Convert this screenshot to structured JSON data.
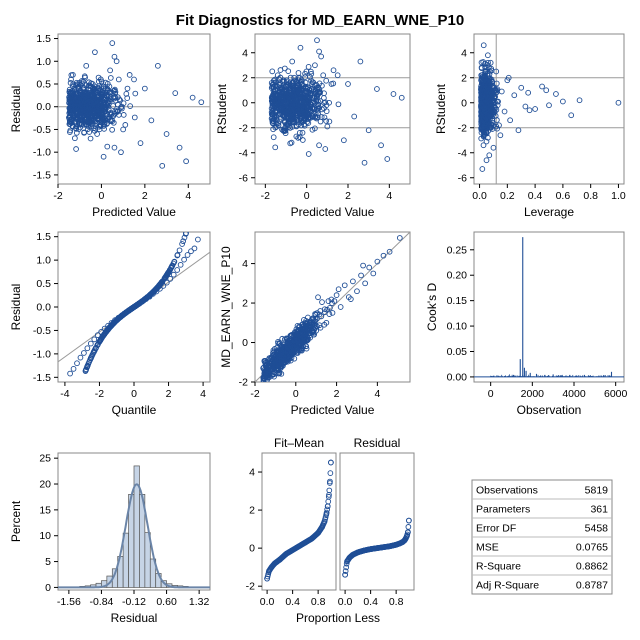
{
  "title": "Fit Diagnostics for MD_EARN_WNE_P10",
  "colors": {
    "points": "#1f4e96",
    "reference": "#9a9a9a",
    "frame": "#888888",
    "hist_fill": "#c6d4e6",
    "curve": "#6b85a8"
  },
  "chart_data": [
    {
      "id": "resid-vs-pred",
      "type": "scatter",
      "xlabel": "Predicted Value",
      "ylabel": "Residual",
      "xlim": [
        -2,
        5
      ],
      "ylim": [
        -1.7,
        1.6
      ],
      "xticks": [
        "-2",
        "0",
        "2",
        "4"
      ],
      "xtick_values": [
        -2,
        0,
        2,
        4
      ],
      "yticks": [
        "-1.5",
        "-1.0",
        "-0.5",
        "0.0",
        "0.5",
        "1.0",
        "1.5"
      ],
      "ytick_values": [
        -1.5,
        -1,
        -0.5,
        0,
        0.5,
        1,
        1.5
      ],
      "reference_y": [
        0
      ],
      "x": [
        -1.2,
        -1.0,
        -0.8,
        -0.6,
        -0.4,
        -0.2,
        0.0,
        0.2,
        0.4,
        0.6,
        0.8,
        1.0,
        1.2,
        -1.1,
        -0.7,
        -0.3,
        0.1,
        0.5,
        0.9,
        1.3,
        -0.9,
        -0.5,
        0.3,
        0.7,
        1.5,
        1.8,
        2.0,
        2.3,
        2.6,
        3.0,
        3.4,
        3.6,
        3.9,
        4.2,
        4.6,
        -1.4,
        -0.1,
        0.6,
        1.1,
        2.8
      ],
      "y": [
        0.1,
        -0.2,
        0.3,
        -0.4,
        0.5,
        -0.6,
        0.2,
        -0.3,
        0.8,
        -0.9,
        0.6,
        -0.5,
        0.4,
        -0.1,
        0.9,
        1.2,
        -1.1,
        1.4,
        -1.0,
        0.7,
        0.2,
        -0.7,
        0.0,
        1.0,
        0.6,
        -0.8,
        0.4,
        -0.3,
        0.9,
        -0.6,
        0.3,
        -0.9,
        -1.2,
        0.2,
        0.1,
        0.6,
        -0.2,
        1.1,
        -0.4,
        -1.3
      ]
    },
    {
      "id": "rstudent-vs-pred",
      "type": "scatter",
      "xlabel": "Predicted Value",
      "ylabel": "RStudent",
      "xlim": [
        -2.5,
        5
      ],
      "ylim": [
        -6.5,
        5.5
      ],
      "xticks": [
        "-2",
        "0",
        "2",
        "4"
      ],
      "xtick_values": [
        -2,
        0,
        2,
        4
      ],
      "yticks": [
        "-6",
        "-4",
        "-2",
        "0",
        "2",
        "4"
      ],
      "ytick_values": [
        -6,
        -4,
        -2,
        0,
        2,
        4
      ],
      "reference_y": [
        -2,
        2
      ],
      "x": [
        -1.2,
        -1.0,
        -0.8,
        -0.6,
        -0.4,
        -0.2,
        0.0,
        0.2,
        0.4,
        0.6,
        0.8,
        1.0,
        1.2,
        -1.1,
        -0.7,
        -0.3,
        0.1,
        0.5,
        0.9,
        1.3,
        -0.9,
        -0.5,
        0.3,
        0.7,
        1.5,
        1.8,
        2.0,
        2.3,
        2.6,
        3.0,
        3.4,
        3.6,
        3.9,
        4.2,
        4.6,
        -1.4,
        -0.1,
        0.6,
        1.1,
        2.8
      ],
      "y": [
        0.3,
        -0.8,
        1.1,
        -1.6,
        2.0,
        -2.4,
        0.8,
        -1.2,
        3.0,
        -3.4,
        2.2,
        -1.9,
        1.5,
        -0.4,
        3.3,
        4.4,
        -4.1,
        5.0,
        -3.7,
        2.6,
        0.7,
        -2.7,
        0.0,
        3.7,
        2.2,
        -3.0,
        1.5,
        -1.1,
        3.3,
        -2.2,
        1.1,
        -3.4,
        -4.5,
        0.7,
        0.4,
        2.2,
        -0.8,
        4.1,
        -1.5,
        -4.8
      ]
    },
    {
      "id": "rstudent-vs-leverage",
      "type": "scatter",
      "xlabel": "Leverage",
      "ylabel": "RStudent",
      "xlim": [
        -0.04,
        1.04
      ],
      "ylim": [
        -6.5,
        5.5
      ],
      "xticks": [
        "0.0",
        "0.2",
        "0.4",
        "0.6",
        "0.8",
        "1.0"
      ],
      "xtick_values": [
        0,
        0.2,
        0.4,
        0.6,
        0.8,
        1.0
      ],
      "yticks": [
        "-6",
        "-4",
        "-2",
        "0",
        "2",
        "4"
      ],
      "ytick_values": [
        -6,
        -4,
        -2,
        0,
        2,
        4
      ],
      "reference_y": [
        -2,
        2
      ],
      "reference_x": [
        0.12
      ],
      "x": [
        0.02,
        0.03,
        0.04,
        0.05,
        0.06,
        0.07,
        0.08,
        0.03,
        0.05,
        0.07,
        0.09,
        0.1,
        0.12,
        0.14,
        0.16,
        0.18,
        0.2,
        0.22,
        0.25,
        0.28,
        0.3,
        0.33,
        0.35,
        0.4,
        0.45,
        0.5,
        0.55,
        0.6,
        0.66,
        0.72,
        0.02,
        0.04,
        0.06,
        0.08,
        0.1,
        1.0,
        0.36,
        0.48,
        0.15,
        0.21
      ],
      "y": [
        0.5,
        -1.2,
        2.3,
        -3.1,
        3.8,
        -4.2,
        1.0,
        4.6,
        -4.6,
        -2.0,
        1.7,
        -0.9,
        2.5,
        -1.8,
        0.9,
        -0.7,
        1.8,
        -1.4,
        0.6,
        -2.2,
        1.2,
        -0.3,
        0.8,
        -0.5,
        1.3,
        -0.2,
        0.7,
        0.1,
        -1.0,
        0.2,
        -5.3,
        0.0,
        -2.8,
        3.2,
        -3.6,
        0.0,
        -0.6,
        1.0,
        -2.6,
        2.0
      ]
    },
    {
      "id": "qq-plot",
      "type": "scatter",
      "xlabel": "Quantile",
      "ylabel": "Residual",
      "xlim": [
        -4.4,
        4.4
      ],
      "ylim": [
        -1.6,
        1.6
      ],
      "xticks": [
        "-4",
        "-2",
        "0",
        "2",
        "4"
      ],
      "xtick_values": [
        -4,
        -2,
        0,
        2,
        4
      ],
      "yticks": [
        "-1.5",
        "-1.0",
        "-0.5",
        "0.0",
        "0.5",
        "1.0",
        "1.5"
      ],
      "ytick_values": [
        -1.5,
        -1,
        -0.5,
        0,
        0.5,
        1,
        1.5
      ],
      "reference_line": {
        "x": [
          -4.4,
          4.4
        ],
        "y": [
          -1.17,
          1.17
        ]
      },
      "x": [
        -3.7,
        -3.5,
        -3.3,
        -3.1,
        -2.9,
        -2.7,
        -2.5,
        -2.3,
        -2.1,
        -1.9,
        -1.7,
        -1.5,
        -1.3,
        -1.1,
        -0.9,
        -0.7,
        -0.5,
        -0.3,
        -0.1,
        0.1,
        0.3,
        0.5,
        0.7,
        0.9,
        1.1,
        1.3,
        1.5,
        1.7,
        1.9,
        2.1,
        2.3,
        2.5,
        2.7,
        2.9,
        3.1,
        3.3,
        3.5,
        3.7
      ],
      "y": [
        -1.42,
        -1.32,
        -1.2,
        -1.08,
        -0.98,
        -0.88,
        -0.78,
        -0.69,
        -0.6,
        -0.53,
        -0.46,
        -0.4,
        -0.34,
        -0.28,
        -0.23,
        -0.18,
        -0.13,
        -0.08,
        -0.03,
        0.02,
        0.07,
        0.12,
        0.17,
        0.22,
        0.28,
        0.33,
        0.39,
        0.45,
        0.52,
        0.6,
        0.69,
        0.79,
        0.9,
        1.01,
        1.11,
        1.19,
        1.25,
        1.44
      ]
    },
    {
      "id": "observed-vs-pred",
      "type": "scatter",
      "xlabel": "Predicted Value",
      "ylabel": "MD_EARN_WNE_P10",
      "xlim": [
        -2,
        5.6
      ],
      "ylim": [
        -2,
        5.6
      ],
      "xticks": [
        "-2",
        "0",
        "2",
        "4"
      ],
      "xtick_values": [
        -2,
        0,
        2,
        4
      ],
      "yticks": [
        "-2",
        "0",
        "2",
        "4"
      ],
      "ytick_values": [
        -2,
        0,
        2,
        4
      ],
      "reference_line": {
        "x": [
          -2,
          5.6
        ],
        "y": [
          -2,
          5.6
        ]
      },
      "x": [
        -1.6,
        -1.4,
        -1.2,
        -1.0,
        -0.8,
        -0.6,
        -0.4,
        -0.2,
        0.0,
        0.2,
        0.4,
        0.6,
        0.8,
        1.0,
        1.2,
        1.4,
        1.6,
        1.8,
        2.0,
        2.2,
        2.4,
        2.6,
        2.8,
        3.0,
        3.2,
        3.4,
        3.6,
        3.8,
        4.0,
        4.3,
        4.6,
        5.1,
        -1.1,
        -0.5,
        0.3,
        0.9,
        1.5,
        2.1,
        2.7,
        3.3
      ],
      "y": [
        -1.3,
        -1.5,
        -1.0,
        -1.2,
        -0.7,
        -0.9,
        -0.2,
        -0.5,
        0.3,
        -0.2,
        0.7,
        0.2,
        1.2,
        0.6,
        1.6,
        0.9,
        2.1,
        1.5,
        2.4,
        1.8,
        2.9,
        2.3,
        3.1,
        2.6,
        3.4,
        3.0,
        3.8,
        3.5,
        4.1,
        4.4,
        4.6,
        5.3,
        -0.4,
        -1.0,
        0.9,
        0.4,
        1.0,
        2.7,
        2.2,
        3.9
      ]
    },
    {
      "id": "cooks-d",
      "type": "bar",
      "xlabel": "Observation",
      "ylabel": "Cook's D",
      "xlim": [
        -800,
        6400
      ],
      "ylim": [
        -0.01,
        0.285
      ],
      "xticks": [
        "0",
        "2000",
        "4000",
        "6000"
      ],
      "xtick_values": [
        0,
        2000,
        4000,
        6000
      ],
      "yticks": [
        "0.00",
        "0.05",
        "0.10",
        "0.15",
        "0.20",
        "0.25"
      ],
      "ytick_values": [
        0,
        0.05,
        0.1,
        0.15,
        0.2,
        0.25
      ],
      "x": [
        1540,
        1420,
        1620,
        1700,
        1900,
        2200,
        2600,
        3000,
        3400,
        3800,
        4100,
        4500,
        4900,
        5300,
        5800,
        300,
        700,
        1100,
        2400,
        3200
      ],
      "y": [
        0.275,
        0.035,
        0.018,
        0.012,
        0.008,
        0.006,
        0.004,
        0.005,
        0.003,
        0.004,
        0.003,
        0.004,
        0.002,
        0.003,
        0.01,
        0.003,
        0.002,
        0.004,
        0.003,
        0.002
      ]
    },
    {
      "id": "residual-histogram",
      "type": "bar",
      "xlabel": "Residual",
      "ylabel": "Percent",
      "xlim": [
        -1.8,
        1.56
      ],
      "ylim": [
        -0.5,
        26
      ],
      "xticks": [
        "-1.56",
        "-0.84",
        "-0.12",
        "0.60",
        "1.32"
      ],
      "xtick_values": [
        -1.56,
        -0.84,
        -0.12,
        0.6,
        1.32
      ],
      "yticks": [
        "0",
        "5",
        "10",
        "15",
        "20",
        "25"
      ],
      "ytick_values": [
        0,
        5,
        10,
        15,
        20,
        25
      ],
      "bin_width": 0.12,
      "bin_centers": [
        -1.5,
        -1.38,
        -1.26,
        -1.14,
        -1.02,
        -0.9,
        -0.78,
        -0.66,
        -0.54,
        -0.42,
        -0.3,
        -0.18,
        -0.06,
        0.06,
        0.18,
        0.3,
        0.42,
        0.54,
        0.66,
        0.78,
        0.9,
        1.02,
        1.14,
        1.26,
        1.38
      ],
      "values": [
        0.1,
        0.1,
        0.2,
        0.3,
        0.5,
        0.8,
        1.3,
        2.2,
        3.6,
        6.0,
        10.5,
        18.0,
        23.5,
        18.0,
        10.6,
        5.5,
        2.7,
        1.3,
        0.7,
        0.4,
        0.3,
        0.2,
        0.1,
        0.1,
        0.1
      ],
      "normal_curve": {
        "mean": -0.06,
        "sd": 0.24
      }
    },
    {
      "id": "residual-fit-spread",
      "type": "scatter",
      "xlabel": "Proportion Less",
      "ylabel": "",
      "panels": [
        "Fit–Mean",
        "Residual"
      ],
      "xlim": [
        -0.08,
        1.08
      ],
      "ylim": [
        -2.2,
        5.0
      ],
      "xticks": [
        "0.0",
        "0.4",
        "0.8"
      ],
      "xtick_values": [
        0,
        0.4,
        0.8
      ],
      "yticks": [
        "-2",
        "0",
        "2",
        "4"
      ],
      "ytick_values": [
        -2,
        0,
        2,
        4
      ],
      "x": [
        0.0,
        0.03,
        0.07,
        0.12,
        0.2,
        0.3,
        0.4,
        0.5,
        0.6,
        0.7,
        0.8,
        0.86,
        0.9,
        0.93,
        0.95,
        0.97,
        0.985,
        1.0
      ],
      "fit_mean": [
        -1.6,
        -1.2,
        -1.0,
        -0.8,
        -0.6,
        -0.3,
        -0.1,
        0.1,
        0.3,
        0.5,
        0.8,
        1.1,
        1.4,
        1.8,
        2.2,
        2.8,
        3.5,
        4.5
      ],
      "residual": [
        -1.4,
        -0.7,
        -0.5,
        -0.35,
        -0.22,
        -0.12,
        -0.05,
        0.0,
        0.05,
        0.1,
        0.18,
        0.25,
        0.32,
        0.4,
        0.5,
        0.65,
        0.85,
        1.45
      ]
    }
  ],
  "stats_table": {
    "rows": [
      {
        "label": "Observations",
        "value": "5819"
      },
      {
        "label": "Parameters",
        "value": "361"
      },
      {
        "label": "Error DF",
        "value": "5458"
      },
      {
        "label": "MSE",
        "value": "0.0765"
      },
      {
        "label": "R-Square",
        "value": "0.8862"
      },
      {
        "label": "Adj R-Square",
        "value": "0.8787"
      }
    ]
  }
}
